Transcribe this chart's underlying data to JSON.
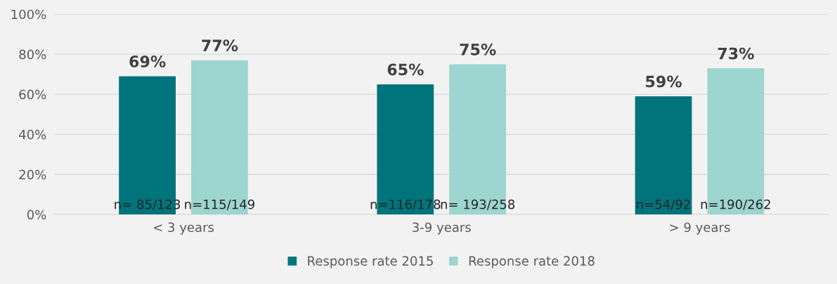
{
  "chart_data": {
    "type": "bar",
    "categories": [
      "< 3 years",
      "3-9 years",
      "> 9 years"
    ],
    "series": [
      {
        "name": "Response rate 2015",
        "color": "#00747a",
        "values": [
          69,
          65,
          59
        ],
        "value_labels": [
          "69%",
          "65%",
          "59%"
        ]
      },
      {
        "name": "Response rate 2018",
        "color": "#9dd5d0",
        "values": [
          77,
          75,
          73
        ],
        "value_labels": [
          "77%",
          "75%",
          "73%"
        ]
      }
    ],
    "ylim": [
      0,
      100
    ],
    "yticks": [
      {
        "value": 0,
        "label": "0%"
      },
      {
        "value": 20,
        "label": "20%"
      },
      {
        "value": 40,
        "label": "40%"
      },
      {
        "value": 60,
        "label": "60%"
      },
      {
        "value": 80,
        "label": "80%"
      },
      {
        "value": 100,
        "label": "100%"
      }
    ],
    "grid": "y",
    "legend": "bottom",
    "annotations": [
      "n= 85/123",
      "n=115/149",
      "n=116/178",
      "n= 193/258",
      "n=54/92",
      "n=190/262"
    ]
  }
}
